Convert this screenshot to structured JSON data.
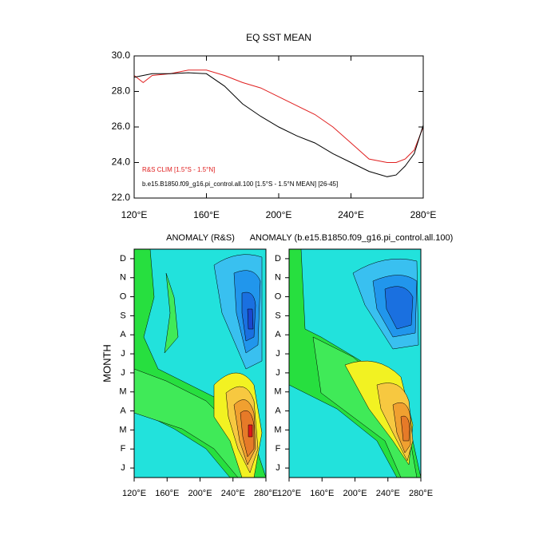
{
  "chart_data": [
    {
      "type": "line",
      "title": "EQ SST MEAN",
      "x": [
        120,
        125,
        130,
        140,
        150,
        160,
        170,
        180,
        190,
        200,
        210,
        220,
        230,
        240,
        250,
        260,
        265,
        270,
        275,
        280
      ],
      "series": [
        {
          "name": "R&S CLIM [1.5°S - 1.5°N]",
          "color": "#e02020",
          "values": [
            28.9,
            28.5,
            28.9,
            29.0,
            29.2,
            29.2,
            28.9,
            28.5,
            28.2,
            27.7,
            27.2,
            26.7,
            26.0,
            25.1,
            24.2,
            24.0,
            24.0,
            24.2,
            24.7,
            26.0
          ]
        },
        {
          "name": "b.e15.B1850.f09_g16.pi_control.all.100 [1.5°S - 1.5°N MEAN] [26-45]",
          "color": "#000000",
          "values": [
            28.8,
            28.9,
            29.0,
            29.0,
            29.05,
            29.0,
            28.3,
            27.3,
            26.6,
            26.0,
            25.5,
            25.1,
            24.5,
            24.0,
            23.5,
            23.2,
            23.3,
            23.8,
            24.5,
            26.1
          ]
        }
      ],
      "xlim": [
        120,
        280
      ],
      "xticks": [
        {
          "value": 120,
          "label": "120°E"
        },
        {
          "value": 160,
          "label": "160°E"
        },
        {
          "value": 200,
          "label": "200°E"
        },
        {
          "value": 240,
          "label": "240°E"
        },
        {
          "value": 280,
          "label": "280°E"
        }
      ],
      "ylim": [
        22,
        30
      ],
      "yticks": [
        {
          "value": 22,
          "label": "22.0"
        },
        {
          "value": 24,
          "label": "24.0"
        },
        {
          "value": 26,
          "label": "26.0"
        },
        {
          "value": 28,
          "label": "28.0"
        },
        {
          "value": 30,
          "label": "30.0"
        }
      ]
    },
    {
      "type": "contour",
      "ylabel": "MONTH",
      "categories": [
        "J",
        "F",
        "M",
        "A",
        "M",
        "J",
        "J",
        "A",
        "S",
        "O",
        "N",
        "D"
      ],
      "panels": [
        {
          "title": "ANOMALY (R&S)"
        },
        {
          "title": "ANOMALY (b.e15.B1850.f09_g16.pi_control.all.100)"
        }
      ],
      "xlim": [
        120,
        280
      ],
      "xticks": [
        {
          "value": 120,
          "label": "120°E"
        },
        {
          "value": 160,
          "label": "160°E"
        },
        {
          "value": 200,
          "label": "200°E"
        },
        {
          "value": 240,
          "label": "240°E"
        },
        {
          "value": 280,
          "label": "280°E"
        }
      ]
    }
  ]
}
